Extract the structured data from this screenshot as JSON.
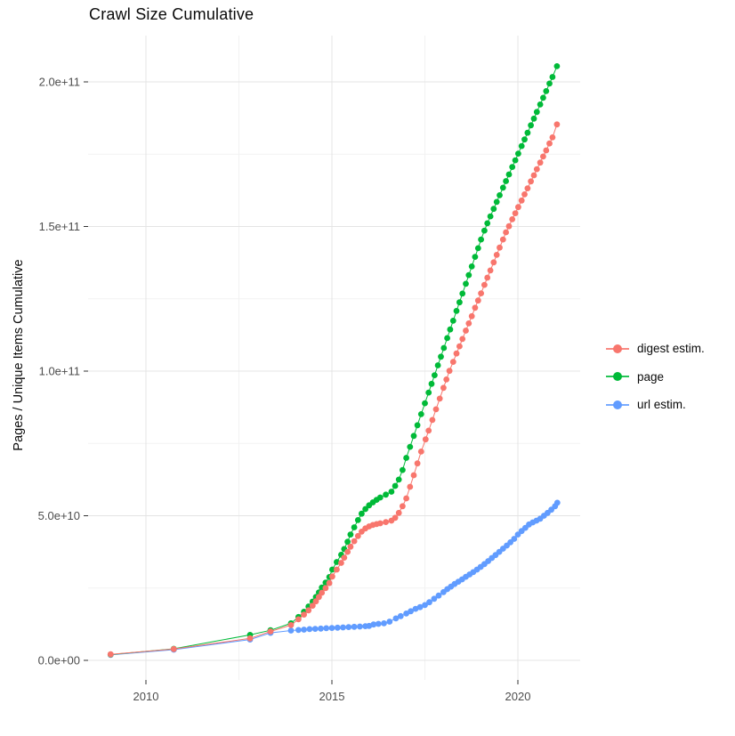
{
  "chart_data": {
    "type": "line",
    "title": "Crawl Size Cumulative",
    "xlabel": "",
    "ylabel": "Pages / Unique Items Cumulative",
    "y_unit": "items, y values stored in billions (1e9)",
    "grid": "on",
    "x_axis": {
      "domain": [
        2008.45,
        2021.66
      ],
      "ticks": [
        2010,
        2015,
        2020
      ],
      "tick_labels": [
        "2010",
        "2015",
        "2020"
      ],
      "minor_ticks": [
        2012.5,
        2017.5
      ]
    },
    "y_axis": {
      "domain": [
        -8,
        216
      ],
      "ticks": [
        0,
        50,
        100,
        150,
        200
      ],
      "tick_labels": [
        "0.0e+00",
        "5.0e+10",
        "1.0e+11",
        "1.5e+11",
        "2.0e+11"
      ],
      "minor_ticks": [
        25,
        75,
        125,
        175
      ]
    },
    "legend": {
      "position": "right"
    },
    "series": [
      {
        "name": "digest estim.",
        "color": "#F8766D",
        "points": [
          [
            2009.05,
            2.1
          ],
          [
            2010.75,
            3.9
          ],
          [
            2012.8,
            7.6
          ],
          [
            2013.35,
            10.0
          ],
          [
            2013.9,
            12.2
          ],
          [
            2014.1,
            14.2
          ],
          [
            2014.25,
            15.8
          ],
          [
            2014.37,
            17.3
          ],
          [
            2014.48,
            18.9
          ],
          [
            2014.57,
            20.4
          ],
          [
            2014.65,
            21.9
          ],
          [
            2014.73,
            23.4
          ],
          [
            2014.83,
            25.0
          ],
          [
            2014.93,
            26.7
          ],
          [
            2015.01,
            29.0
          ],
          [
            2015.13,
            31.4
          ],
          [
            2015.25,
            33.7
          ],
          [
            2015.33,
            35.5
          ],
          [
            2015.42,
            37.5
          ],
          [
            2015.5,
            39.3
          ],
          [
            2015.6,
            41.2
          ],
          [
            2015.7,
            43.0
          ],
          [
            2015.8,
            44.5
          ],
          [
            2015.9,
            45.6
          ],
          [
            2016.0,
            46.3
          ],
          [
            2016.1,
            46.8
          ],
          [
            2016.2,
            47.1
          ],
          [
            2016.3,
            47.4
          ],
          [
            2016.45,
            47.8
          ],
          [
            2016.6,
            48.3
          ],
          [
            2016.7,
            49.3
          ],
          [
            2016.8,
            51.0
          ],
          [
            2016.9,
            53.3
          ],
          [
            2017.0,
            56.0
          ],
          [
            2017.1,
            60.0
          ],
          [
            2017.2,
            64.0
          ],
          [
            2017.3,
            68.1
          ],
          [
            2017.4,
            72.2
          ],
          [
            2017.52,
            76.4
          ],
          [
            2017.6,
            79.4
          ],
          [
            2017.7,
            83.1
          ],
          [
            2017.8,
            86.8
          ],
          [
            2017.9,
            90.5
          ],
          [
            2018.0,
            94.2
          ],
          [
            2018.08,
            97.1
          ],
          [
            2018.16,
            100.1
          ],
          [
            2018.26,
            103.2
          ],
          [
            2018.35,
            106.1
          ],
          [
            2018.43,
            108.6
          ],
          [
            2018.51,
            111.1
          ],
          [
            2018.6,
            114.0
          ],
          [
            2018.68,
            116.5
          ],
          [
            2018.76,
            119.0
          ],
          [
            2018.85,
            121.9
          ],
          [
            2018.93,
            124.4
          ],
          [
            2019.01,
            126.9
          ],
          [
            2019.1,
            129.8
          ],
          [
            2019.18,
            132.3
          ],
          [
            2019.26,
            134.8
          ],
          [
            2019.35,
            137.6
          ],
          [
            2019.43,
            140.2
          ],
          [
            2019.51,
            142.7
          ],
          [
            2019.6,
            145.5
          ],
          [
            2019.68,
            148.0
          ],
          [
            2019.76,
            150.1
          ],
          [
            2019.85,
            152.5
          ],
          [
            2019.93,
            154.6
          ],
          [
            2020.01,
            156.7
          ],
          [
            2020.1,
            159.0
          ],
          [
            2020.18,
            161.1
          ],
          [
            2020.26,
            163.2
          ],
          [
            2020.35,
            165.6
          ],
          [
            2020.43,
            167.7
          ],
          [
            2020.51,
            169.8
          ],
          [
            2020.6,
            172.1
          ],
          [
            2020.68,
            174.2
          ],
          [
            2020.76,
            176.3
          ],
          [
            2020.85,
            178.7
          ],
          [
            2020.93,
            180.8
          ],
          [
            2021.05,
            185.3
          ]
        ]
      },
      {
        "name": "page",
        "color": "#00BA38",
        "points": [
          [
            2009.05,
            2.0
          ],
          [
            2010.75,
            4.0
          ],
          [
            2012.8,
            8.8
          ],
          [
            2013.35,
            10.4
          ],
          [
            2013.9,
            12.8
          ],
          [
            2014.1,
            15.0
          ],
          [
            2014.25,
            16.8
          ],
          [
            2014.37,
            18.6
          ],
          [
            2014.48,
            20.3
          ],
          [
            2014.57,
            21.9
          ],
          [
            2014.65,
            23.5
          ],
          [
            2014.73,
            25.2
          ],
          [
            2014.83,
            26.9
          ],
          [
            2014.93,
            28.8
          ],
          [
            2015.01,
            31.4
          ],
          [
            2015.13,
            34.0
          ],
          [
            2015.25,
            36.5
          ],
          [
            2015.33,
            38.5
          ],
          [
            2015.42,
            41.0
          ],
          [
            2015.5,
            43.5
          ],
          [
            2015.6,
            46.0
          ],
          [
            2015.7,
            48.5
          ],
          [
            2015.8,
            50.7
          ],
          [
            2015.9,
            52.3
          ],
          [
            2016.0,
            53.6
          ],
          [
            2016.1,
            54.6
          ],
          [
            2016.2,
            55.5
          ],
          [
            2016.3,
            56.3
          ],
          [
            2016.45,
            57.3
          ],
          [
            2016.6,
            58.3
          ],
          [
            2016.7,
            60.3
          ],
          [
            2016.8,
            62.5
          ],
          [
            2016.9,
            65.8
          ],
          [
            2017.0,
            70.0
          ],
          [
            2017.1,
            73.8
          ],
          [
            2017.2,
            77.6
          ],
          [
            2017.3,
            81.3
          ],
          [
            2017.4,
            85.1
          ],
          [
            2017.5,
            88.9
          ],
          [
            2017.6,
            92.6
          ],
          [
            2017.68,
            95.6
          ],
          [
            2017.76,
            98.6
          ],
          [
            2017.85,
            102.0
          ],
          [
            2017.93,
            105.0
          ],
          [
            2018.01,
            108.0
          ],
          [
            2018.1,
            111.4
          ],
          [
            2018.18,
            114.4
          ],
          [
            2018.26,
            117.4
          ],
          [
            2018.35,
            120.8
          ],
          [
            2018.43,
            123.8
          ],
          [
            2018.51,
            126.8
          ],
          [
            2018.6,
            130.2
          ],
          [
            2018.68,
            133.2
          ],
          [
            2018.76,
            136.2
          ],
          [
            2018.85,
            139.5
          ],
          [
            2018.93,
            142.5
          ],
          [
            2019.01,
            145.5
          ],
          [
            2019.1,
            148.6
          ],
          [
            2019.18,
            151.1
          ],
          [
            2019.26,
            153.5
          ],
          [
            2019.35,
            156.1
          ],
          [
            2019.43,
            158.5
          ],
          [
            2019.51,
            160.8
          ],
          [
            2019.6,
            163.4
          ],
          [
            2019.68,
            165.7
          ],
          [
            2019.76,
            168.0
          ],
          [
            2019.85,
            170.6
          ],
          [
            2019.93,
            172.9
          ],
          [
            2020.01,
            175.2
          ],
          [
            2020.1,
            177.8
          ],
          [
            2020.18,
            180.1
          ],
          [
            2020.26,
            182.4
          ],
          [
            2020.35,
            185.0
          ],
          [
            2020.43,
            187.3
          ],
          [
            2020.51,
            189.6
          ],
          [
            2020.6,
            192.2
          ],
          [
            2020.68,
            194.5
          ],
          [
            2020.76,
            196.8
          ],
          [
            2020.85,
            199.4
          ],
          [
            2020.93,
            201.7
          ],
          [
            2021.05,
            205.4
          ]
        ]
      },
      {
        "name": "url estim.",
        "color": "#619CFF",
        "points": [
          [
            2009.05,
            1.9
          ],
          [
            2010.75,
            3.7
          ],
          [
            2012.8,
            7.2
          ],
          [
            2013.35,
            9.5
          ],
          [
            2013.9,
            10.3
          ],
          [
            2014.1,
            10.5
          ],
          [
            2014.25,
            10.6
          ],
          [
            2014.4,
            10.8
          ],
          [
            2014.55,
            10.9
          ],
          [
            2014.7,
            11.0
          ],
          [
            2014.85,
            11.1
          ],
          [
            2015.0,
            11.2
          ],
          [
            2015.15,
            11.3
          ],
          [
            2015.3,
            11.4
          ],
          [
            2015.45,
            11.5
          ],
          [
            2015.6,
            11.6
          ],
          [
            2015.75,
            11.7
          ],
          [
            2015.9,
            11.8
          ],
          [
            2016.0,
            11.9
          ],
          [
            2016.12,
            12.4
          ],
          [
            2016.25,
            12.6
          ],
          [
            2016.4,
            12.8
          ],
          [
            2016.55,
            13.4
          ],
          [
            2016.72,
            14.5
          ],
          [
            2016.85,
            15.3
          ],
          [
            2017.0,
            16.2
          ],
          [
            2017.12,
            17.0
          ],
          [
            2017.25,
            17.8
          ],
          [
            2017.37,
            18.4
          ],
          [
            2017.5,
            19.1
          ],
          [
            2017.62,
            20.1
          ],
          [
            2017.75,
            21.3
          ],
          [
            2017.87,
            22.4
          ],
          [
            2018.0,
            23.6
          ],
          [
            2018.1,
            24.6
          ],
          [
            2018.2,
            25.5
          ],
          [
            2018.3,
            26.4
          ],
          [
            2018.4,
            27.2
          ],
          [
            2018.5,
            28.0
          ],
          [
            2018.6,
            28.9
          ],
          [
            2018.7,
            29.7
          ],
          [
            2018.8,
            30.5
          ],
          [
            2018.9,
            31.4
          ],
          [
            2019.0,
            32.3
          ],
          [
            2019.1,
            33.3
          ],
          [
            2019.2,
            34.3
          ],
          [
            2019.3,
            35.4
          ],
          [
            2019.4,
            36.4
          ],
          [
            2019.5,
            37.5
          ],
          [
            2019.6,
            38.6
          ],
          [
            2019.7,
            39.7
          ],
          [
            2019.8,
            40.8
          ],
          [
            2019.9,
            42.0
          ],
          [
            2020.0,
            43.5
          ],
          [
            2020.1,
            44.7
          ],
          [
            2020.2,
            45.8
          ],
          [
            2020.3,
            47.0
          ],
          [
            2020.4,
            47.7
          ],
          [
            2020.5,
            48.3
          ],
          [
            2020.6,
            49.0
          ],
          [
            2020.7,
            50.0
          ],
          [
            2020.8,
            51.0
          ],
          [
            2020.9,
            52.1
          ],
          [
            2021.0,
            53.3
          ],
          [
            2021.06,
            54.5
          ]
        ]
      }
    ]
  }
}
